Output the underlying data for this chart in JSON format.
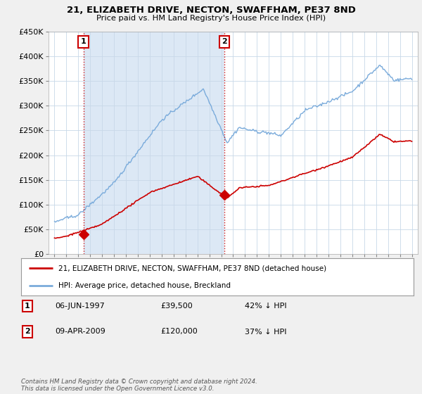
{
  "title": "21, ELIZABETH DRIVE, NECTON, SWAFFHAM, PE37 8ND",
  "subtitle": "Price paid vs. HM Land Registry's House Price Index (HPI)",
  "legend_line1": "21, ELIZABETH DRIVE, NECTON, SWAFFHAM, PE37 8ND (detached house)",
  "legend_line2": "HPI: Average price, detached house, Breckland",
  "marker1_date_label": "06-JUN-1997",
  "marker1_price": "£39,500",
  "marker1_hpi": "42% ↓ HPI",
  "marker2_date_label": "09-APR-2009",
  "marker2_price": "£120,000",
  "marker2_hpi": "37% ↓ HPI",
  "footer": "Contains HM Land Registry data © Crown copyright and database right 2024.\nThis data is licensed under the Open Government Licence v3.0.",
  "sale1_x": 1997.43,
  "sale1_y": 39500,
  "sale2_x": 2009.27,
  "sale2_y": 120000,
  "hpi_color": "#7aabdb",
  "price_color": "#cc0000",
  "vline_color": "#cc0000",
  "marker_box_color": "#cc0000",
  "background_color": "#f0f0f0",
  "plot_background": "#ffffff",
  "shade_color": "#dce8f5",
  "ylim": [
    0,
    450000
  ],
  "xlim": [
    1994.5,
    2025.5
  ],
  "yticks": [
    0,
    50000,
    100000,
    150000,
    200000,
    250000,
    300000,
    350000,
    400000,
    450000
  ],
  "ytick_labels": [
    "£0",
    "£50K",
    "£100K",
    "£150K",
    "£200K",
    "£250K",
    "£300K",
    "£350K",
    "£400K",
    "£450K"
  ]
}
